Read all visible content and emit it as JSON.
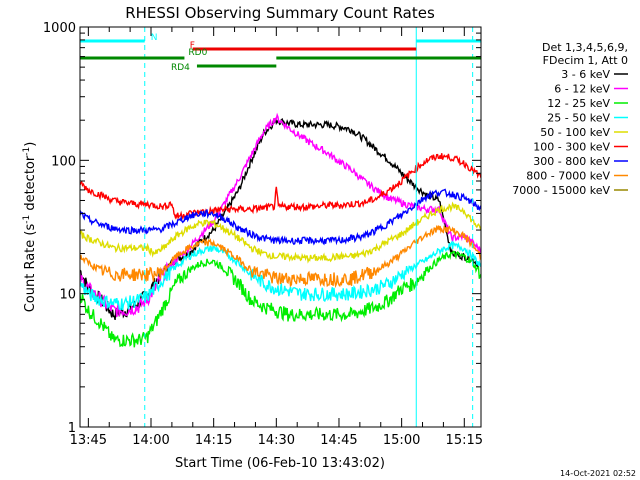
{
  "chart_data": {
    "type": "line",
    "title": "RHESSI Observing Summary Count Rates",
    "xlabel": "Start Time (06-Feb-10 13:43:02)",
    "ylabel_main": "Count Rate (s",
    "ylabel_sup1": "-1",
    "ylabel_mid": " detector",
    "ylabel_sup2": "-1",
    "ylabel_end": ")",
    "y_scale": "log",
    "ylim": [
      1,
      1000
    ],
    "xlim_minutes": [
      -2.0,
      94.0
    ],
    "x_ticks": [
      {
        "m": 0,
        "label": "13:45"
      },
      {
        "m": 15,
        "label": "14:00"
      },
      {
        "m": 30,
        "label": "14:15"
      },
      {
        "m": 45,
        "label": "14:30"
      },
      {
        "m": 60,
        "label": "14:45"
      },
      {
        "m": 75,
        "label": "15:00"
      },
      {
        "m": 90,
        "label": "15:15"
      }
    ],
    "y_ticks": [
      {
        "v": 1,
        "label": "1"
      },
      {
        "v": 10,
        "label": "10"
      },
      {
        "v": 100,
        "label": "100"
      },
      {
        "v": 1000,
        "label": "1000"
      }
    ],
    "legend_header": [
      "Det 1,3,4,5,6,9,",
      "FDecim 1, Att 0"
    ],
    "series": [
      {
        "name": "3 - 6 keV",
        "color": "#000000",
        "points": [
          [
            -2,
            15
          ],
          [
            0,
            11
          ],
          [
            3,
            9
          ],
          [
            6,
            7
          ],
          [
            9,
            7.5
          ],
          [
            12,
            8.5
          ],
          [
            14,
            10
          ],
          [
            16,
            12
          ],
          [
            18,
            15
          ],
          [
            21,
            18
          ],
          [
            24,
            20
          ],
          [
            27,
            25
          ],
          [
            30,
            30
          ],
          [
            33,
            42
          ],
          [
            36,
            60
          ],
          [
            39,
            100
          ],
          [
            42,
            160
          ],
          [
            45,
            200
          ],
          [
            48,
            190
          ],
          [
            51,
            185
          ],
          [
            54,
            185
          ],
          [
            57,
            185
          ],
          [
            60,
            180
          ],
          [
            63,
            170
          ],
          [
            66,
            145
          ],
          [
            69,
            120
          ],
          [
            72,
            100
          ],
          [
            75,
            80
          ],
          [
            78,
            65
          ],
          [
            81,
            55
          ],
          [
            84,
            50
          ],
          [
            87,
            20
          ],
          [
            90,
            19
          ],
          [
            92,
            18
          ],
          [
            94,
            16
          ]
        ]
      },
      {
        "name": "6 - 12 keV",
        "color": "#ff00ff",
        "points": [
          [
            -2,
            13
          ],
          [
            0,
            11
          ],
          [
            3,
            9
          ],
          [
            6,
            7.5
          ],
          [
            9,
            7.5
          ],
          [
            12,
            8
          ],
          [
            14,
            9
          ],
          [
            16,
            11
          ],
          [
            18,
            14
          ],
          [
            21,
            18
          ],
          [
            24,
            22
          ],
          [
            27,
            28
          ],
          [
            30,
            35
          ],
          [
            33,
            50
          ],
          [
            36,
            72
          ],
          [
            39,
            110
          ],
          [
            42,
            165
          ],
          [
            45,
            210
          ],
          [
            48,
            175
          ],
          [
            51,
            150
          ],
          [
            54,
            130
          ],
          [
            57,
            115
          ],
          [
            60,
            98
          ],
          [
            63,
            85
          ],
          [
            66,
            70
          ],
          [
            69,
            60
          ],
          [
            72,
            52
          ],
          [
            75,
            48
          ],
          [
            78,
            45
          ],
          [
            81,
            43
          ],
          [
            84,
            43
          ],
          [
            87,
            26
          ],
          [
            90,
            27
          ],
          [
            92,
            24
          ],
          [
            94,
            21
          ]
        ]
      },
      {
        "name": "12 - 25 keV",
        "color": "#00ee00",
        "points": [
          [
            -2,
            10
          ],
          [
            0,
            7.5
          ],
          [
            3,
            6
          ],
          [
            6,
            4.5
          ],
          [
            9,
            4.5
          ],
          [
            12,
            4.5
          ],
          [
            14,
            4.7
          ],
          [
            16,
            6
          ],
          [
            18,
            8
          ],
          [
            21,
            12
          ],
          [
            24,
            15
          ],
          [
            27,
            17
          ],
          [
            30,
            17.5
          ],
          [
            33,
            15
          ],
          [
            36,
            12
          ],
          [
            39,
            9
          ],
          [
            42,
            8
          ],
          [
            45,
            7.5
          ],
          [
            48,
            7
          ],
          [
            51,
            7
          ],
          [
            54,
            7
          ],
          [
            57,
            7
          ],
          [
            60,
            7
          ],
          [
            63,
            7
          ],
          [
            66,
            7.5
          ],
          [
            69,
            8
          ],
          [
            72,
            9
          ],
          [
            75,
            11
          ],
          [
            78,
            12
          ],
          [
            81,
            15
          ],
          [
            84,
            18
          ],
          [
            87,
            20
          ],
          [
            90,
            19
          ],
          [
            92,
            17
          ],
          [
            94,
            14
          ]
        ]
      },
      {
        "name": "25 - 50 keV",
        "color": "#00ffff",
        "points": [
          [
            -2,
            12
          ],
          [
            0,
            10
          ],
          [
            3,
            9
          ],
          [
            6,
            8.5
          ],
          [
            9,
            8.5
          ],
          [
            12,
            9
          ],
          [
            14,
            9.5
          ],
          [
            16,
            11
          ],
          [
            18,
            13
          ],
          [
            21,
            16
          ],
          [
            24,
            19
          ],
          [
            27,
            21
          ],
          [
            30,
            22
          ],
          [
            33,
            20
          ],
          [
            36,
            17
          ],
          [
            39,
            14
          ],
          [
            42,
            12
          ],
          [
            45,
            11
          ],
          [
            48,
            10.5
          ],
          [
            51,
            10
          ],
          [
            54,
            10
          ],
          [
            57,
            10
          ],
          [
            60,
            10
          ],
          [
            63,
            10
          ],
          [
            66,
            10.5
          ],
          [
            69,
            11
          ],
          [
            72,
            12
          ],
          [
            75,
            14
          ],
          [
            78,
            16
          ],
          [
            81,
            18
          ],
          [
            84,
            21
          ],
          [
            87,
            23
          ],
          [
            90,
            22
          ],
          [
            92,
            19
          ],
          [
            94,
            16
          ]
        ]
      },
      {
        "name": "50 - 100 keV",
        "color": "#dddd00",
        "points": [
          [
            -2,
            28
          ],
          [
            0,
            26
          ],
          [
            3,
            24
          ],
          [
            6,
            22
          ],
          [
            9,
            22
          ],
          [
            12,
            22
          ],
          [
            14,
            22
          ],
          [
            16,
            20
          ],
          [
            18,
            22
          ],
          [
            21,
            27
          ],
          [
            24,
            31
          ],
          [
            27,
            34
          ],
          [
            30,
            34
          ],
          [
            33,
            30
          ],
          [
            36,
            26
          ],
          [
            39,
            22
          ],
          [
            42,
            20
          ],
          [
            45,
            19
          ],
          [
            48,
            19
          ],
          [
            51,
            18.5
          ],
          [
            54,
            18.5
          ],
          [
            57,
            18.5
          ],
          [
            60,
            19
          ],
          [
            63,
            19
          ],
          [
            66,
            20
          ],
          [
            69,
            22
          ],
          [
            72,
            25
          ],
          [
            75,
            28
          ],
          [
            78,
            33
          ],
          [
            81,
            38
          ],
          [
            84,
            43
          ],
          [
            87,
            45
          ],
          [
            90,
            42
          ],
          [
            92,
            35
          ],
          [
            94,
            30
          ]
        ]
      },
      {
        "name": "100 - 300 keV",
        "color": "#ff0000",
        "points": [
          [
            -2,
            68
          ],
          [
            0,
            60
          ],
          [
            3,
            55
          ],
          [
            6,
            50
          ],
          [
            9,
            48
          ],
          [
            12,
            47
          ],
          [
            14,
            47
          ],
          [
            16,
            46
          ],
          [
            18,
            45
          ],
          [
            20,
            48
          ],
          [
            20.5,
            40
          ],
          [
            21,
            38
          ],
          [
            24,
            40
          ],
          [
            27,
            41
          ],
          [
            30,
            42
          ],
          [
            33,
            43
          ],
          [
            36,
            43
          ],
          [
            39,
            43
          ],
          [
            42,
            44
          ],
          [
            44.5,
            45
          ],
          [
            45,
            60
          ],
          [
            45.5,
            45
          ],
          [
            48,
            45
          ],
          [
            51,
            45
          ],
          [
            54,
            45
          ],
          [
            57,
            46
          ],
          [
            60,
            46
          ],
          [
            63,
            47
          ],
          [
            66,
            48
          ],
          [
            69,
            52
          ],
          [
            72,
            60
          ],
          [
            75,
            70
          ],
          [
            78,
            85
          ],
          [
            81,
            100
          ],
          [
            84,
            108
          ],
          [
            87,
            105
          ],
          [
            90,
            95
          ],
          [
            92,
            85
          ],
          [
            94,
            74
          ]
        ]
      },
      {
        "name": "300 - 800 keV",
        "color": "#0000ff",
        "points": [
          [
            -2,
            40
          ],
          [
            0,
            36
          ],
          [
            3,
            33
          ],
          [
            6,
            31
          ],
          [
            9,
            30
          ],
          [
            12,
            30
          ],
          [
            14,
            30
          ],
          [
            16,
            30
          ],
          [
            18,
            31
          ],
          [
            21,
            34
          ],
          [
            24,
            38
          ],
          [
            27,
            40
          ],
          [
            30,
            40
          ],
          [
            33,
            36
          ],
          [
            36,
            31
          ],
          [
            39,
            28
          ],
          [
            42,
            26
          ],
          [
            45,
            25
          ],
          [
            48,
            25
          ],
          [
            51,
            25
          ],
          [
            54,
            25
          ],
          [
            57,
            25
          ],
          [
            60,
            25
          ],
          [
            63,
            26
          ],
          [
            66,
            27
          ],
          [
            69,
            30
          ],
          [
            72,
            34
          ],
          [
            75,
            39
          ],
          [
            78,
            46
          ],
          [
            81,
            54
          ],
          [
            84,
            58
          ],
          [
            87,
            56
          ],
          [
            90,
            52
          ],
          [
            92,
            48
          ],
          [
            94,
            43
          ]
        ]
      },
      {
        "name": "800 - 7000 keV",
        "color": "#ff8800",
        "points": [
          [
            -2,
            19
          ],
          [
            0,
            17
          ],
          [
            3,
            15
          ],
          [
            6,
            14
          ],
          [
            9,
            14
          ],
          [
            12,
            14
          ],
          [
            14,
            14
          ],
          [
            16,
            14
          ],
          [
            18,
            15
          ],
          [
            21,
            19
          ],
          [
            24,
            22
          ],
          [
            27,
            24
          ],
          [
            30,
            24
          ],
          [
            33,
            21
          ],
          [
            36,
            18
          ],
          [
            39,
            15
          ],
          [
            42,
            14
          ],
          [
            45,
            13
          ],
          [
            48,
            13
          ],
          [
            51,
            13
          ],
          [
            54,
            13
          ],
          [
            57,
            13
          ],
          [
            60,
            13
          ],
          [
            63,
            13
          ],
          [
            66,
            14
          ],
          [
            69,
            15
          ],
          [
            72,
            17
          ],
          [
            75,
            20
          ],
          [
            78,
            24
          ],
          [
            81,
            28
          ],
          [
            84,
            31
          ],
          [
            87,
            30
          ],
          [
            90,
            27
          ],
          [
            92,
            23
          ],
          [
            94,
            19
          ]
        ]
      },
      {
        "name": "7000 - 15000 keV",
        "color": "#998800",
        "points": [
          [
            -2,
            0.9
          ],
          [
            94,
            0.9
          ]
        ]
      }
    ],
    "attenuator_lines": [
      {
        "label": "N",
        "color": "#00ffff",
        "y_row": 1,
        "segments": [
          [
            -2,
            13.5
          ],
          [
            78.5,
            94
          ]
        ]
      },
      {
        "label": "F",
        "color": "#ee0000",
        "y_row": 2,
        "segments": [
          [
            25,
            78.5
          ]
        ]
      },
      {
        "label": "RD0",
        "color": "#008800",
        "y_row": 3,
        "segments": [
          [
            -2,
            23
          ],
          [
            45,
            94
          ]
        ]
      },
      {
        "label": "RD4",
        "color": "#008800",
        "y_row": 4,
        "segments": [
          [
            26,
            45
          ]
        ]
      }
    ],
    "vlines_solid": [
      78.5
    ],
    "vlines_dashed": [
      13.5,
      92.0
    ],
    "vline_solid_left": -2.0
  },
  "footer": {
    "timestamp": "14-Oct-2021 02:52"
  }
}
